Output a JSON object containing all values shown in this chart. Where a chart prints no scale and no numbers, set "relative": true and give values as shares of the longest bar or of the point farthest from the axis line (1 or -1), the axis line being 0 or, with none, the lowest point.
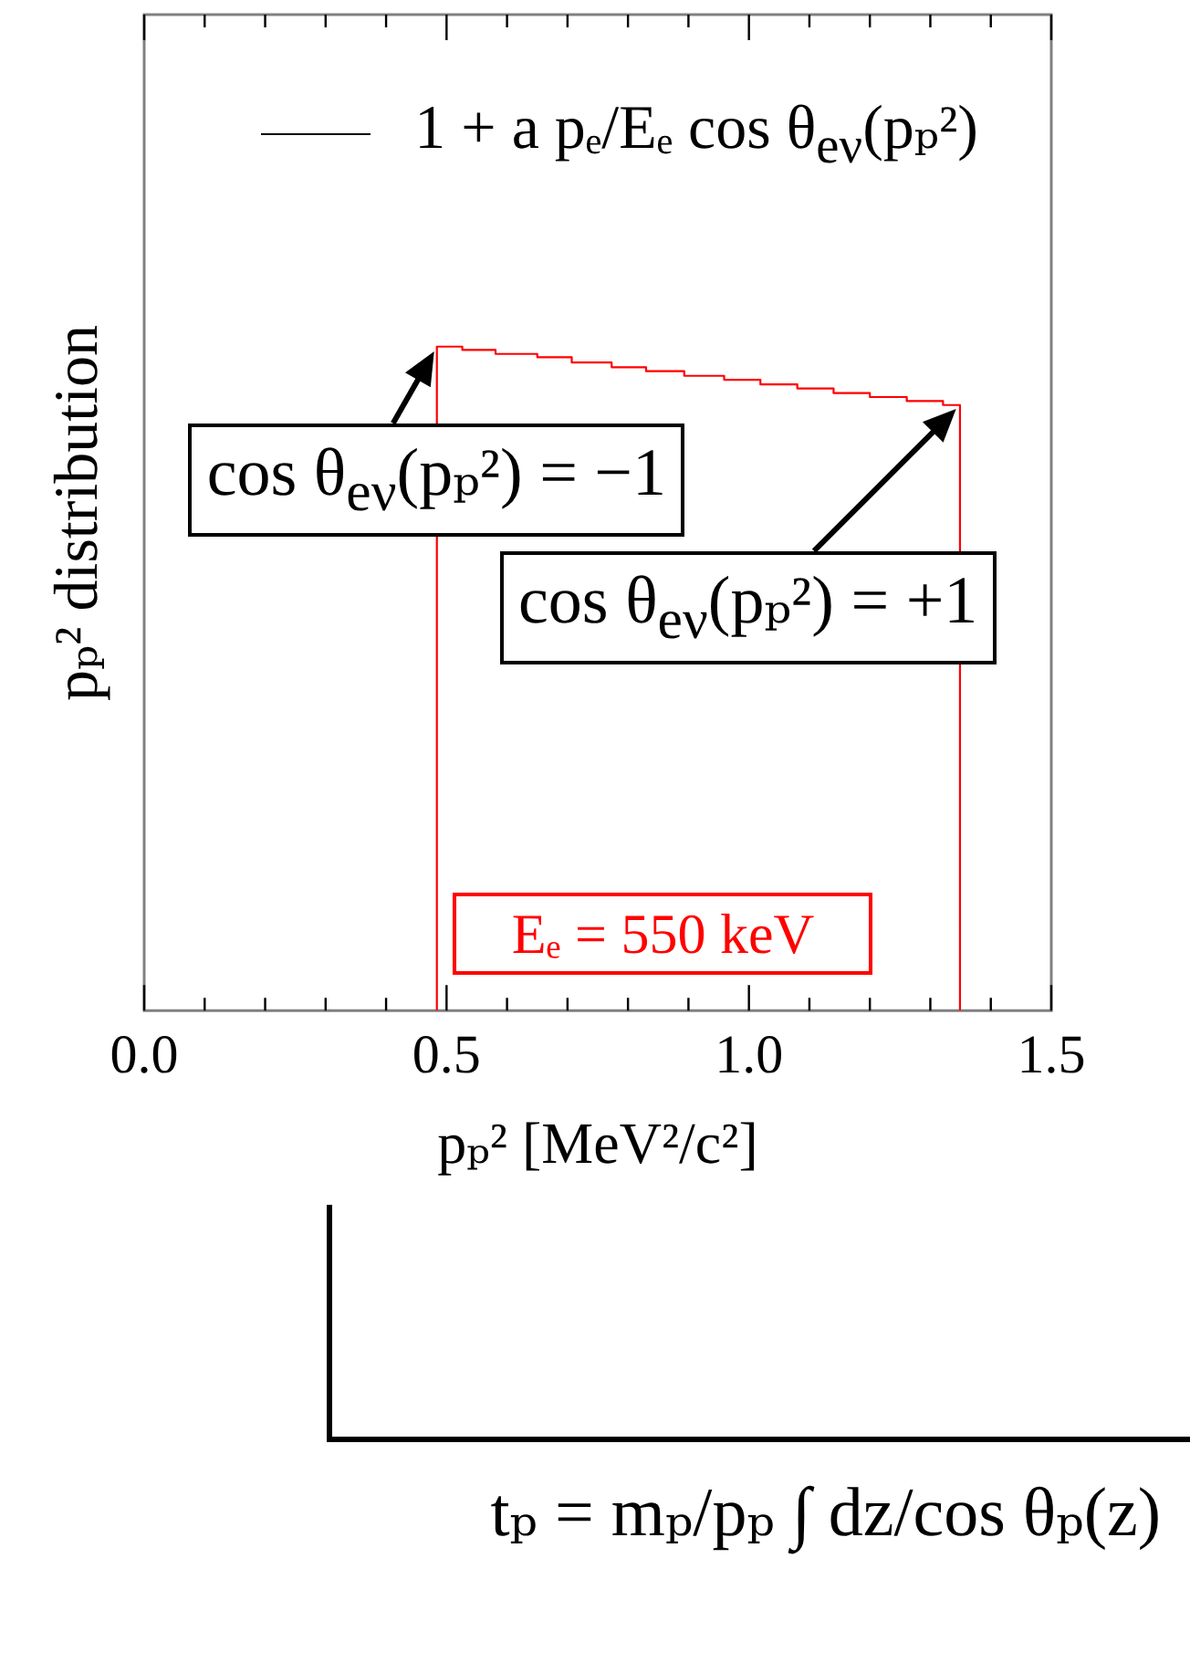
{
  "chart_data": {
    "type": "step",
    "xlabel": "pₚ² [MeV²/c²]",
    "ylabel": "pₚ² distribution",
    "xlim": [
      0,
      1.5
    ],
    "xticks": [
      {
        "value": 0,
        "label": "0.0"
      },
      {
        "value": 0.1,
        "label": null
      },
      {
        "value": 0.2,
        "label": null
      },
      {
        "value": 0.3,
        "label": null
      },
      {
        "value": 0.4,
        "label": null
      },
      0.5,
      {
        "value": 0.6,
        "label": null
      },
      {
        "value": 0.7,
        "label": null
      },
      {
        "value": 0.8,
        "label": null
      },
      {
        "value": 0.9,
        "label": null
      },
      {
        "value": 1,
        "label": "1.0"
      },
      {
        "value": 1.1,
        "label": null
      },
      {
        "value": 1.2,
        "label": null
      },
      {
        "value": 1.3,
        "label": null
      },
      {
        "value": 1.4,
        "label": null
      },
      1.5
    ],
    "relative": true,
    "x": [
      0.484,
      0.484,
      0.526,
      0.581,
      0.65,
      0.707,
      0.773,
      0.83,
      0.893,
      0.959,
      1.019,
      1.08,
      1.14,
      1.2,
      1.261,
      1.321,
      1.349
    ],
    "series": [
      {
        "name": "1 + a pₑ/Eₑ cos θ$_{eν}$(pₚ²)",
        "color": "#000000",
        "values": [
          null,
          null,
          null,
          null,
          null,
          null,
          null,
          null,
          null,
          null,
          null,
          null,
          null,
          null,
          null,
          null,
          null
        ]
      },
      {
        "name": "Eₑ = 550 keV",
        "color": "#ff0000",
        "values": [
          0,
          1.0,
          0.995,
          0.989,
          0.984,
          0.976,
          0.969,
          0.963,
          0.956,
          0.95,
          0.943,
          0.937,
          0.93,
          0.924,
          0.918,
          0.912,
          0
        ]
      }
    ],
    "marker": "none",
    "legend": "top right",
    "annotations": [
      {
        "text": "cos θ$_{eν}$(pₚ²) = −1",
        "x": 0.484,
        "y": 1.0
      },
      {
        "text": "cos θ$_{eν}$(pₚ²) = +1",
        "x": 1.349,
        "y": 0.912
      },
      "tₚ = mₚ/pₚ ∫ dz/cos θₚ(z)"
    ]
  }
}
